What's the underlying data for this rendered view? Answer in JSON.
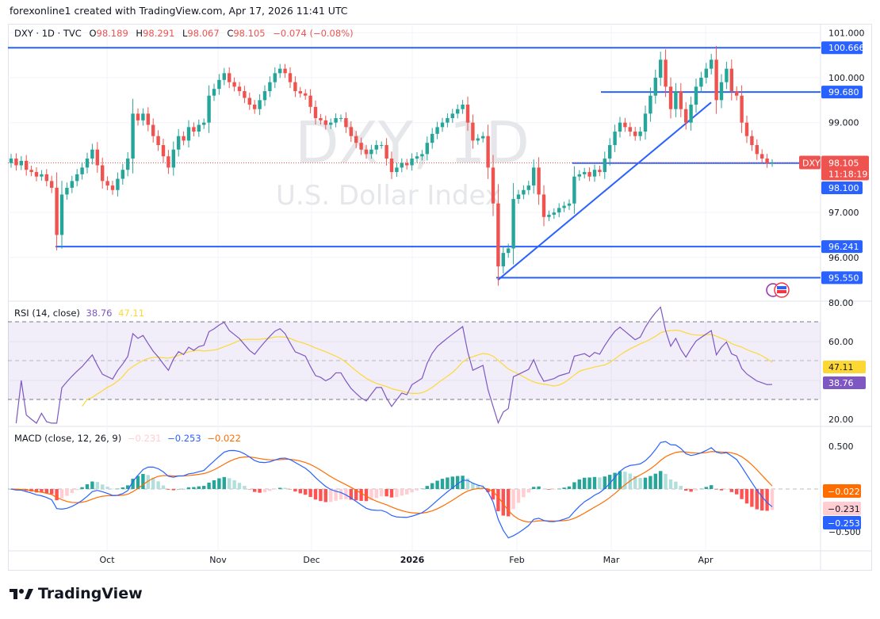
{
  "credit": "forexonline1 created with TradingView.com, Apr 17, 2026 11:41 UTC",
  "brand": "TradingView",
  "legend": {
    "symbol": "DXY · 1D · TVC",
    "o_label": "O",
    "o": "98.189",
    "h_label": "H",
    "h": "98.291",
    "l_label": "L",
    "l": "98.067",
    "c_label": "C",
    "c": "98.105",
    "change": "−0.074 (−0.08%)"
  },
  "watermark": {
    "title": "DXY, 1D",
    "subtitle": "U.S. Dollar Index"
  },
  "colors": {
    "up": "#26a69a",
    "down": "#ef5350",
    "level_line": "#2962ff",
    "rsi": "#7e57c2",
    "rsi_ma": "#fdd835",
    "macd": "#2962ff",
    "signal": "#ff6d00"
  },
  "chart_data": {
    "type": "candlestick",
    "symbol": "DXY",
    "interval": "1D",
    "x_tick_labels": [
      "Oct",
      "Nov",
      "Dec",
      "2026",
      "Feb",
      "Mar",
      "Apr"
    ],
    "y_tick_labels": [
      "101.000",
      "100.000",
      "99.000",
      "97.000",
      "96.000"
    ],
    "ylim": [
      95.3,
      101.2
    ],
    "closes": [
      98.2,
      98.05,
      98.15,
      97.95,
      97.9,
      97.8,
      97.85,
      97.7,
      97.55,
      96.5,
      97.4,
      97.55,
      97.7,
      97.85,
      98.0,
      98.2,
      98.4,
      98.05,
      97.7,
      97.6,
      97.5,
      97.75,
      97.95,
      98.2,
      99.2,
      99.05,
      99.2,
      98.95,
      98.7,
      98.5,
      98.25,
      98.0,
      98.4,
      98.7,
      98.6,
      98.9,
      98.8,
      98.95,
      99.0,
      99.6,
      99.75,
      99.95,
      100.1,
      99.9,
      99.8,
      99.7,
      99.55,
      99.4,
      99.3,
      99.5,
      99.7,
      99.9,
      100.1,
      100.2,
      100.1,
      99.9,
      99.7,
      99.65,
      99.6,
      99.35,
      99.1,
      99.05,
      98.95,
      99.0,
      99.1,
      99.1,
      98.9,
      98.7,
      98.55,
      98.4,
      98.3,
      98.4,
      98.5,
      98.5,
      98.2,
      97.9,
      98.0,
      98.1,
      98.05,
      98.2,
      98.25,
      98.3,
      98.55,
      98.75,
      98.9,
      99.0,
      99.1,
      99.2,
      99.3,
      99.4,
      99.0,
      98.6,
      98.65,
      98.7,
      98.0,
      97.2,
      95.8,
      96.1,
      96.2,
      97.3,
      97.4,
      97.5,
      97.6,
      98.0,
      97.4,
      96.9,
      96.95,
      97.0,
      97.1,
      97.15,
      97.2,
      97.8,
      97.85,
      97.9,
      97.8,
      97.95,
      97.9,
      98.2,
      98.5,
      98.8,
      99.0,
      98.9,
      98.8,
      98.7,
      98.8,
      99.2,
      99.6,
      100.0,
      100.4,
      99.8,
      99.3,
      99.7,
      99.3,
      99.0,
      99.4,
      99.8,
      100.0,
      100.2,
      100.4,
      99.5,
      99.9,
      100.2,
      99.7,
      99.6,
      99.0,
      98.7,
      98.5,
      98.3,
      98.2,
      98.1,
      98.105
    ],
    "horizontal_levels": [
      {
        "value": 100.666,
        "label": "100.666"
      },
      {
        "value": 99.68,
        "label": "99.680"
      },
      {
        "value": 98.1,
        "label": "98.100"
      },
      {
        "value": 96.241,
        "label": "96.241"
      },
      {
        "value": 95.55,
        "label": "95.550"
      }
    ],
    "trendline": {
      "from": 95.55,
      "to": 99.45
    },
    "last_price": {
      "symbol_label": "DXY",
      "value": "98.105",
      "countdown": "11:18:19"
    },
    "rsi": {
      "title": "RSI (14, close)",
      "value": "38.76",
      "ma_value": "47.11",
      "ticks": [
        "80.00",
        "60.00",
        "20.00"
      ],
      "upper": 70,
      "middle": 50,
      "lower": 30
    },
    "macd": {
      "title": "MACD (close, 12, 26, 9)",
      "hist": "−0.231",
      "macd": "−0.253",
      "signal": "−0.022",
      "ticks": [
        "0.500",
        "−0.500"
      ]
    }
  }
}
